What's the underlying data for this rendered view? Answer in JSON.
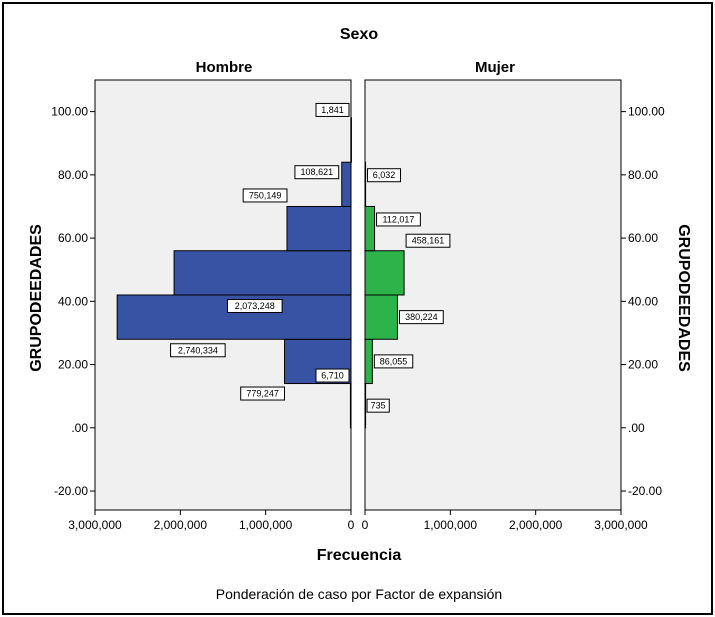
{
  "chart_data": {
    "type": "bar",
    "title": "Sexo",
    "xlabel": "Frecuencia",
    "ylabel": "GRUPODEEDADES",
    "footnote": "Ponderación de caso por Factor de expansión",
    "ylim": [
      -26,
      110
    ],
    "y_ticks": [
      100,
      80,
      60,
      40,
      20,
      0,
      -20
    ],
    "y_tick_labels": [
      "100.00",
      "80.00",
      "60.00",
      "40.00",
      "20.00",
      ".00",
      "-20.00"
    ],
    "x_ticks": [
      3000000,
      2000000,
      1000000,
      0
    ],
    "x_tick_labels_left": [
      "3,000,000",
      "2,000,000",
      "1,000,000",
      "0"
    ],
    "x_tick_labels_right": [
      "0",
      "1,000,000",
      "2,000,000",
      "3,000,000"
    ],
    "xmax": 3000000,
    "bin_width": 14,
    "panels": [
      {
        "name": "Hombre",
        "color": "#3953a4",
        "bars": [
          {
            "y0": 0,
            "y1": 14,
            "value": 6710,
            "label": "6,710"
          },
          {
            "y0": 14,
            "y1": 28,
            "value": 779247,
            "label": "779,247"
          },
          {
            "y0": 28,
            "y1": 42,
            "value": 2740334,
            "label": "2,740,334"
          },
          {
            "y0": 42,
            "y1": 56,
            "value": 2073248,
            "label": "2,073,248"
          },
          {
            "y0": 56,
            "y1": 70,
            "value": 750149,
            "label": "750,149"
          },
          {
            "y0": 70,
            "y1": 84,
            "value": 108621,
            "label": "108,621"
          },
          {
            "y0": 84,
            "y1": 98,
            "value": 1841,
            "label": "1,841"
          }
        ]
      },
      {
        "name": "Mujer",
        "color": "#2db34a",
        "bars": [
          {
            "y0": 0,
            "y1": 14,
            "value": 735,
            "label": "735"
          },
          {
            "y0": 14,
            "y1": 28,
            "value": 86055,
            "label": "86,055"
          },
          {
            "y0": 28,
            "y1": 42,
            "value": 380224,
            "label": "380,224"
          },
          {
            "y0": 42,
            "y1": 56,
            "value": 458161,
            "label": "458,161"
          },
          {
            "y0": 56,
            "y1": 70,
            "value": 112017,
            "label": "112,017"
          },
          {
            "y0": 70,
            "y1": 84,
            "value": 6032,
            "label": "6,032"
          }
        ]
      }
    ]
  }
}
